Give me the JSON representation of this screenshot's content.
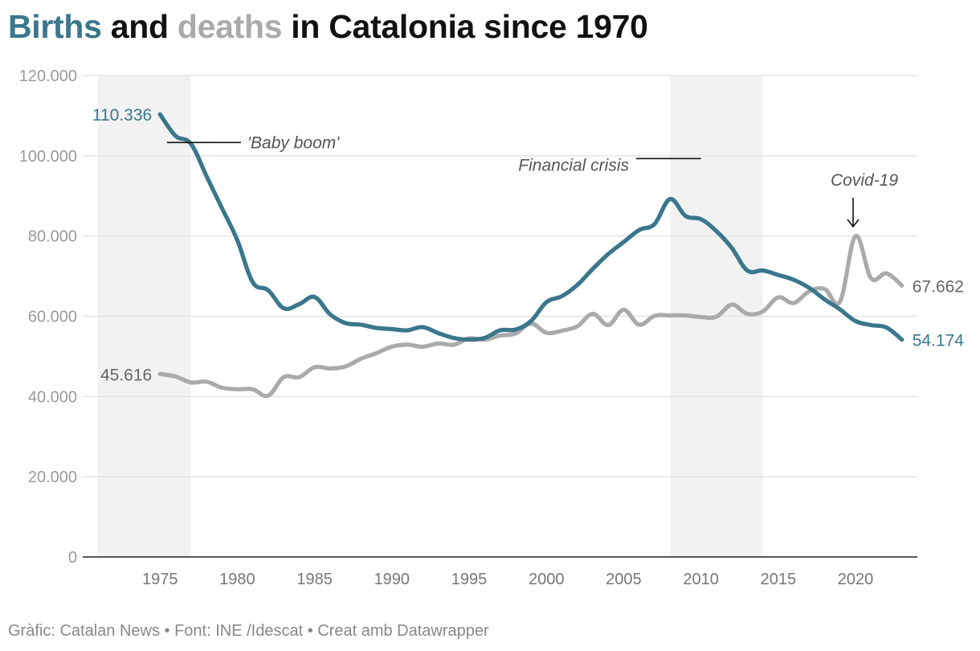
{
  "title": {
    "word_births": "Births",
    "word_and": " and ",
    "word_deaths": "deaths",
    "rest": " in Catalonia since 1970"
  },
  "footer": "Gràfic: Catalan News • Font: INE /Idescat • Creat amb Datawrapper",
  "colors": {
    "births": "#3a768c",
    "deaths": "#aaaaaa",
    "shading": "#f2f2f2",
    "grid": "#e3e3e3",
    "axis": "#222222",
    "tick_text": "#9a9a9a",
    "annotation": "#555555"
  },
  "chart_data": {
    "type": "line",
    "title": "Births and deaths in Catalonia since 1970",
    "xlim": [
      1970,
      2024
    ],
    "ylim": [
      0,
      120000
    ],
    "y_ticks": [
      {
        "value": 0,
        "label": "0"
      },
      {
        "value": 20000,
        "label": "20.000"
      },
      {
        "value": 40000,
        "label": "40.000"
      },
      {
        "value": 60000,
        "label": "60.000"
      },
      {
        "value": 80000,
        "label": "80.000"
      },
      {
        "value": 100000,
        "label": "100.000"
      },
      {
        "value": 120000,
        "label": "120.000"
      }
    ],
    "x_ticks": [
      {
        "value": 1975,
        "label": "1975"
      },
      {
        "value": 1980,
        "label": "1980"
      },
      {
        "value": 1985,
        "label": "1985"
      },
      {
        "value": 1990,
        "label": "1990"
      },
      {
        "value": 1995,
        "label": "1995"
      },
      {
        "value": 2000,
        "label": "2000"
      },
      {
        "value": 2005,
        "label": "2005"
      },
      {
        "value": 2010,
        "label": "2010"
      },
      {
        "value": 2015,
        "label": "2015"
      },
      {
        "value": 2020,
        "label": "2020"
      }
    ],
    "shaded_periods": [
      {
        "name": "baby-boom-period",
        "from": 1970,
        "to": 1977
      },
      {
        "name": "financial-crisis-period",
        "from": 2008,
        "to": 2014
      }
    ],
    "x": [
      1975,
      1976,
      1977,
      1978,
      1979,
      1980,
      1981,
      1982,
      1983,
      1984,
      1985,
      1986,
      1987,
      1988,
      1989,
      1990,
      1991,
      1992,
      1993,
      1994,
      1995,
      1996,
      1997,
      1998,
      1999,
      2000,
      2001,
      2002,
      2003,
      2004,
      2005,
      2006,
      2007,
      2008,
      2009,
      2010,
      2011,
      2012,
      2013,
      2014,
      2015,
      2016,
      2017,
      2018,
      2019,
      2020,
      2021,
      2022,
      2023
    ],
    "series": [
      {
        "name": "Births",
        "key": "births",
        "values": [
          110336,
          105000,
          103000,
          95000,
          87000,
          79000,
          68500,
          66500,
          62000,
          63000,
          64800,
          60500,
          58300,
          57900,
          57100,
          56800,
          56500,
          57300,
          55800,
          54600,
          54200,
          54600,
          56500,
          56700,
          58800,
          63500,
          65000,
          67800,
          71800,
          75500,
          78500,
          81500,
          83000,
          89200,
          85000,
          84200,
          81200,
          77000,
          71400,
          71400,
          70300,
          69100,
          67100,
          64200,
          61700,
          58800,
          57800,
          57200,
          54174
        ],
        "start_label": "110.336",
        "end_label": "54.174"
      },
      {
        "name": "Deaths",
        "key": "deaths",
        "values": [
          45616,
          45000,
          43500,
          43700,
          42200,
          41800,
          41800,
          40200,
          44800,
          44800,
          47300,
          47000,
          47500,
          49400,
          50800,
          52400,
          52900,
          52400,
          53200,
          52900,
          54500,
          54200,
          55200,
          55700,
          58200,
          55900,
          56400,
          57500,
          60600,
          57800,
          61600,
          57900,
          60100,
          60200,
          60200,
          59800,
          59900,
          62900,
          60600,
          61200,
          64700,
          63300,
          66200,
          66800,
          63700,
          80000,
          69500,
          70700,
          67662
        ],
        "start_label": "45.616",
        "end_label": "67.662"
      }
    ],
    "annotations": [
      {
        "name": "baby-boom-annotation",
        "text": "'Baby boom'",
        "x": 1977.5,
        "y": 103300
      },
      {
        "name": "financial-crisis-annotation",
        "text": "Financial crisis",
        "x": 2008,
        "y": 99300
      },
      {
        "name": "covid-annotation",
        "text": "Covid-19",
        "x": 2020,
        "y": 88000
      }
    ]
  }
}
